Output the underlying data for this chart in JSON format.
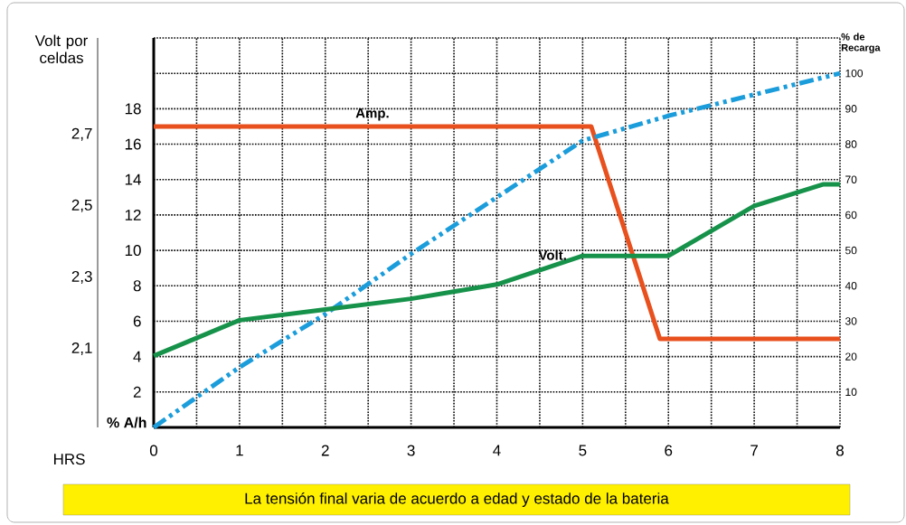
{
  "chart_data": {
    "type": "line",
    "xlabel": "HRS",
    "ylabel": "% A/h",
    "y2label": "% de Recarga",
    "y3label": "Volt por celdas",
    "xlim": [
      0,
      8
    ],
    "xticks": [
      0,
      1,
      2,
      3,
      4,
      5,
      6,
      7,
      8
    ],
    "ylim": [
      0,
      22
    ],
    "yticks": [
      2,
      4,
      6,
      8,
      10,
      12,
      14,
      16,
      18
    ],
    "y2lim": [
      0,
      110
    ],
    "y2ticks": [
      10,
      20,
      30,
      40,
      50,
      60,
      70,
      80,
      90,
      100
    ],
    "y3lim": [
      1.88,
      2.97
    ],
    "y3ticks": [
      {
        "value": 2.1,
        "label": "2,1"
      },
      {
        "value": 2.3,
        "label": "2,3"
      },
      {
        "value": 2.5,
        "label": "2,5"
      },
      {
        "value": 2.7,
        "label": "2,7"
      }
    ],
    "grid": true,
    "marker": "none",
    "series": [
      {
        "name": "Amp.",
        "color": "#e8501e",
        "axis": "y",
        "line_style": "solid",
        "x": [
          0,
          5.1,
          5.9,
          8
        ],
        "values": [
          17,
          17,
          5,
          5
        ]
      },
      {
        "name": "Volt.",
        "color": "#16924a",
        "axis": "y3",
        "line_style": "solid",
        "x": [
          0,
          1,
          2,
          3,
          4,
          5,
          6,
          7,
          7.8,
          8
        ],
        "values": [
          2.08,
          2.18,
          2.21,
          2.24,
          2.28,
          2.36,
          2.36,
          2.5,
          2.56,
          2.56
        ]
      },
      {
        "color": "#1b9ddb",
        "axis": "y2",
        "line_style": "dashed",
        "x": [
          0,
          1,
          2,
          3,
          4,
          5,
          6,
          7,
          8
        ],
        "values": [
          0,
          17,
          32,
          49,
          65,
          81,
          88,
          94,
          100
        ]
      }
    ],
    "annotations": [
      "La tensión final varia de acuerdo a edad y estado de la bateria"
    ]
  }
}
